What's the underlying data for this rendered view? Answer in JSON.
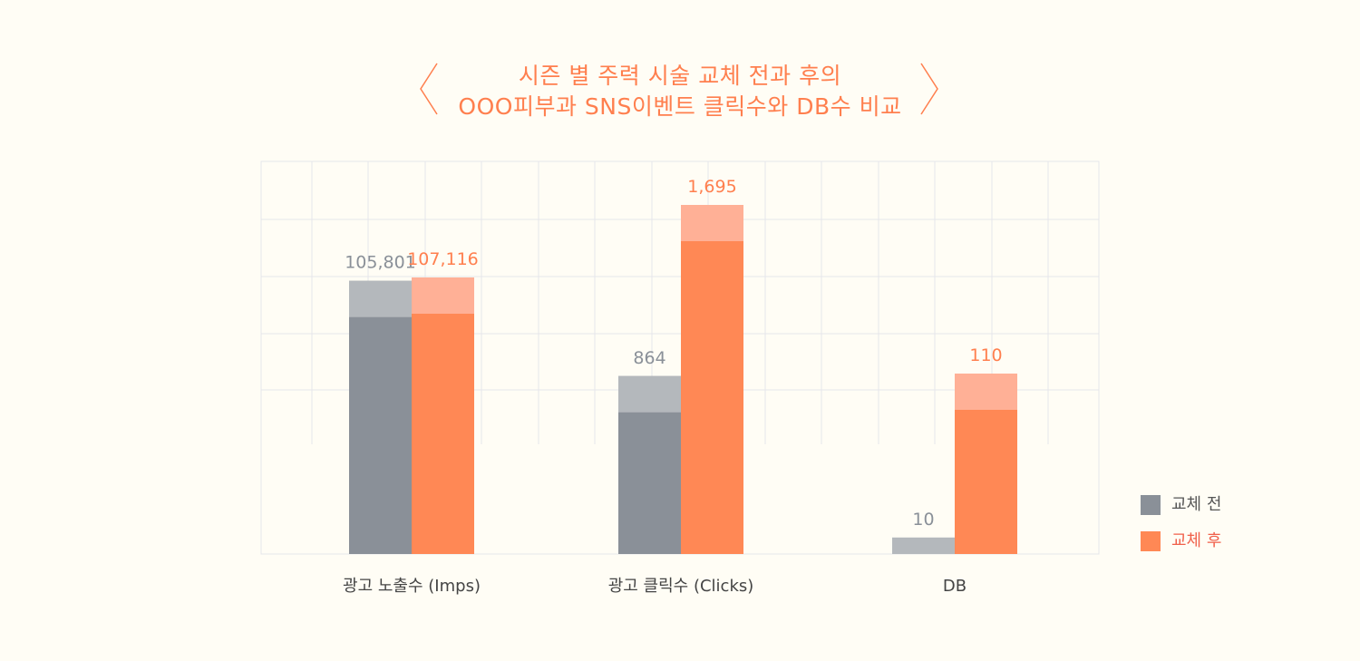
{
  "title": {
    "line1": "시즌 별 주력 시술 교체 전과 후의",
    "line2": "OOO피부과 SNS이벤트 클릭수와 DB수 비교"
  },
  "colors": {
    "background": "#fffdf5",
    "before_dark": "#8a9098",
    "before_light": "#b4b8bc",
    "after_dark": "#ff8855",
    "after_light": "#ffb096",
    "before_label": "#8a9098",
    "after_label": "#ff7f4e",
    "grid": "#e6e6ea",
    "accent": "#ff7f4e"
  },
  "chart_data": {
    "type": "bar",
    "categories": [
      "광고 노출수 (Imps)",
      "광고 클릭수 (Clicks)",
      "DB"
    ],
    "series": [
      {
        "name": "교체 전",
        "values": [
          105801,
          864,
          10
        ],
        "labels": [
          "105,801",
          "864",
          "10"
        ]
      },
      {
        "name": "교체 후",
        "values": [
          107116,
          1695,
          110
        ],
        "labels": [
          "107,116",
          "1,695",
          "110"
        ]
      }
    ],
    "title": "시즌 별 주력 시술 교체 전과 후의 OOO피부과 SNS이벤트 클릭수와 DB수 비교",
    "xlabel": "",
    "ylabel": "",
    "grid": true,
    "legend_position": "bottom-right"
  },
  "legend": [
    {
      "label": "교체 전"
    },
    {
      "label": "교체 후"
    }
  ]
}
